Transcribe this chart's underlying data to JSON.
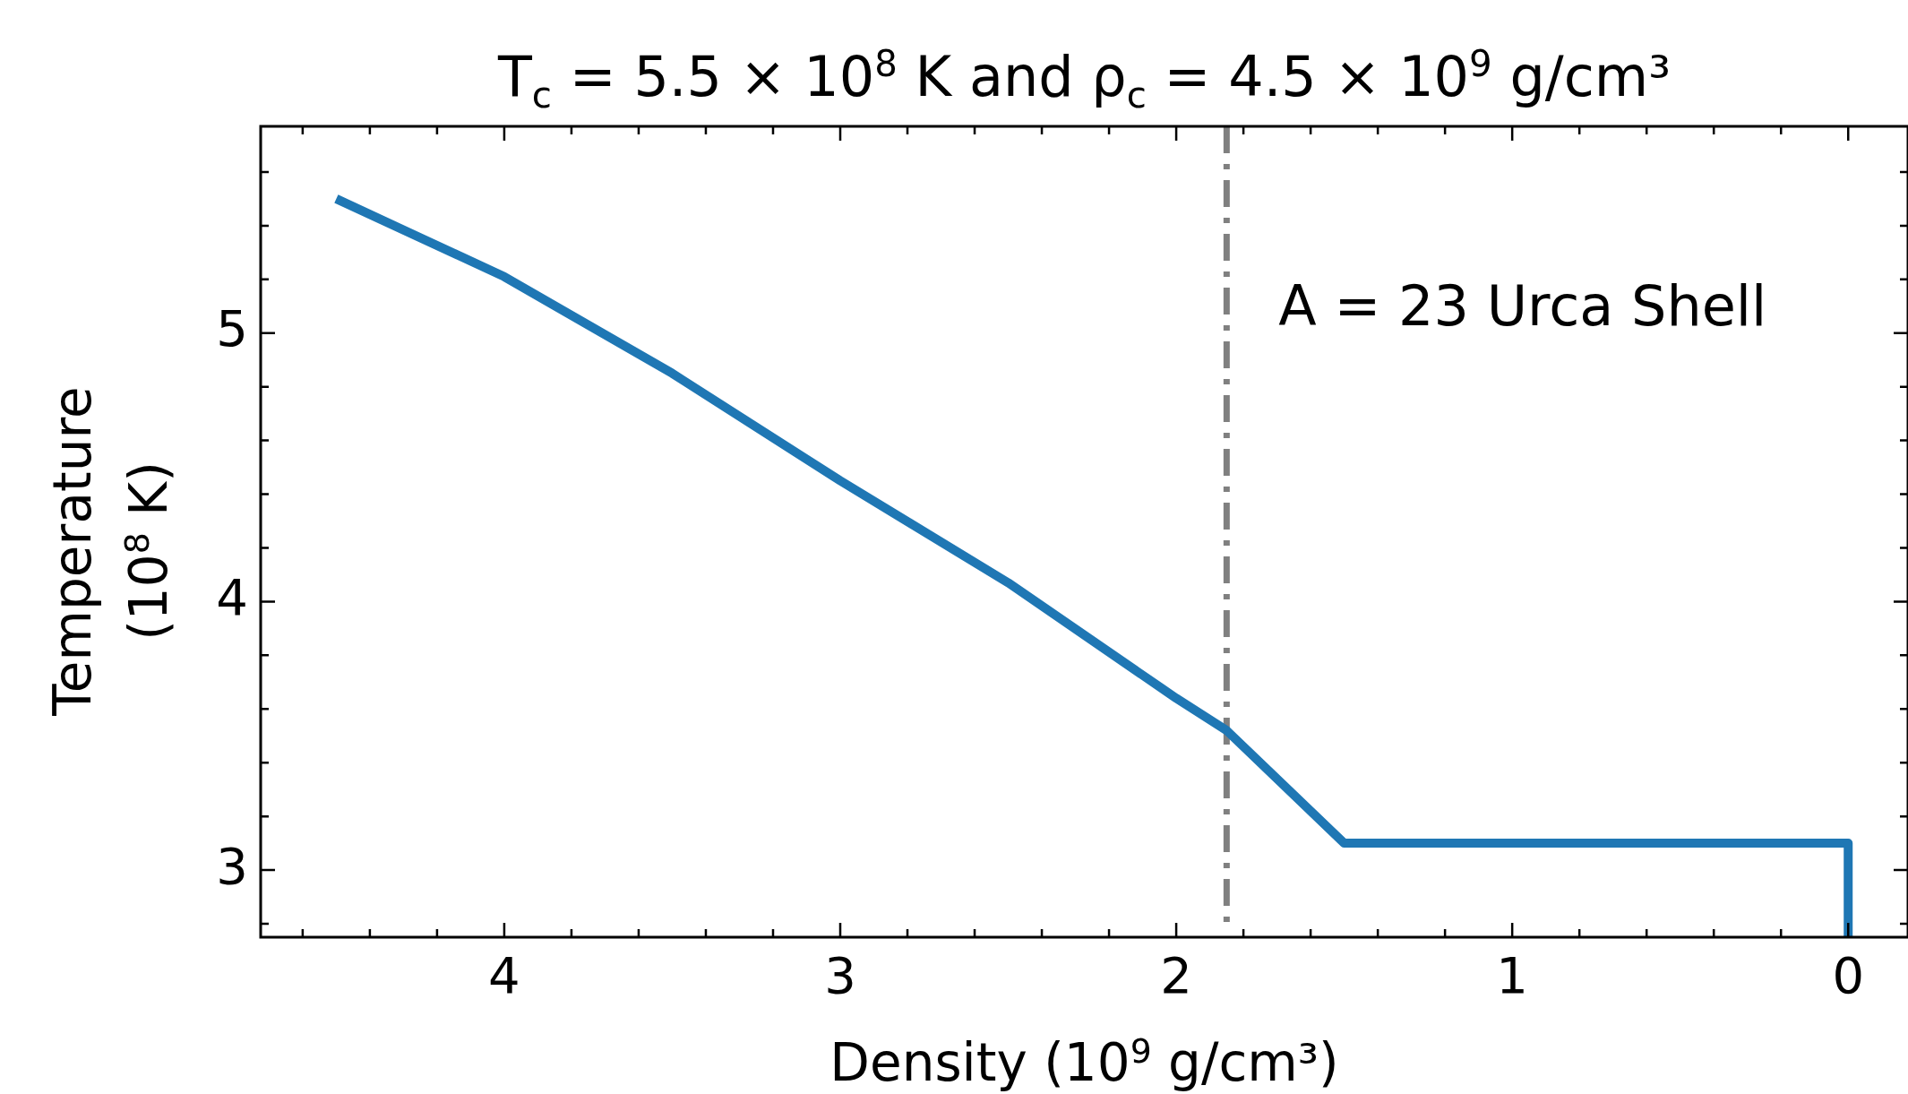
{
  "chart_data": {
    "type": "line",
    "title": "T$_{c}$ = 5.5 × 10$^{8}$ K  and  ρ$_{c}$ = 4.5 × 10$^{9}$ g/cm³",
    "xlabel": "Density (10$^{9}$ g/cm³)",
    "ylabel": "Temperature\n(10$^{8}$ K)",
    "series": [
      {
        "color": "#1f77b4",
        "x": [
          4.5,
          4.0,
          3.5,
          3.0,
          2.5,
          2.0,
          1.85,
          1.5,
          0,
          0
        ],
        "values": [
          5.5,
          5.21,
          4.85,
          4.45,
          4.07,
          3.64,
          3.52,
          3.1,
          3.1,
          2.75
        ]
      }
    ],
    "annotations": [
      "A = 23 Urca Shell"
    ],
    "xlim": [
      4.725,
      -0.178
    ],
    "ylim": [
      2.75,
      5.77
    ],
    "xticks": [
      {
        "value": 4.6,
        "label": null
      },
      {
        "value": 4.4,
        "label": null
      },
      {
        "value": 4.2,
        "label": null
      },
      4,
      {
        "value": 3.8,
        "label": null
      },
      {
        "value": 3.6,
        "label": null
      },
      {
        "value": 3.4,
        "label": null
      },
      {
        "value": 3.2,
        "label": null
      },
      3,
      {
        "value": 2.8,
        "label": null
      },
      {
        "value": 2.6,
        "label": null
      },
      {
        "value": 2.4,
        "label": null
      },
      {
        "value": 2.2,
        "label": null
      },
      2,
      {
        "value": 1.8,
        "label": null
      },
      {
        "value": 1.6,
        "label": null
      },
      {
        "value": 1.4,
        "label": null
      },
      {
        "value": 1.2,
        "label": null
      },
      1,
      {
        "value": 0.8,
        "label": null
      },
      {
        "value": 0.6,
        "label": null
      },
      {
        "value": 0.4,
        "label": null
      },
      {
        "value": 0.2,
        "label": null
      },
      0
    ],
    "yticks": [
      {
        "value": 2.8,
        "label": null
      },
      3,
      {
        "value": 3.2,
        "label": null
      },
      {
        "value": 3.4,
        "label": null
      },
      {
        "value": 3.6,
        "label": null
      },
      {
        "value": 3.8,
        "label": null
      },
      4,
      {
        "value": 4.2,
        "label": null
      },
      {
        "value": 4.4,
        "label": null
      },
      {
        "value": 4.6,
        "label": null
      },
      {
        "value": 4.8,
        "label": null
      },
      5,
      {
        "value": 5.2,
        "label": null
      },
      {
        "value": 5.4,
        "label": null
      },
      {
        "value": 5.6,
        "label": null
      }
    ],
    "ref_lines": [
      {
        "axis": "x",
        "value": 1.85,
        "color": "#808080",
        "line_style": "dashed"
      }
    ],
    "grid": false,
    "legend": false,
    "marker": "none",
    "line_style": "solid"
  }
}
